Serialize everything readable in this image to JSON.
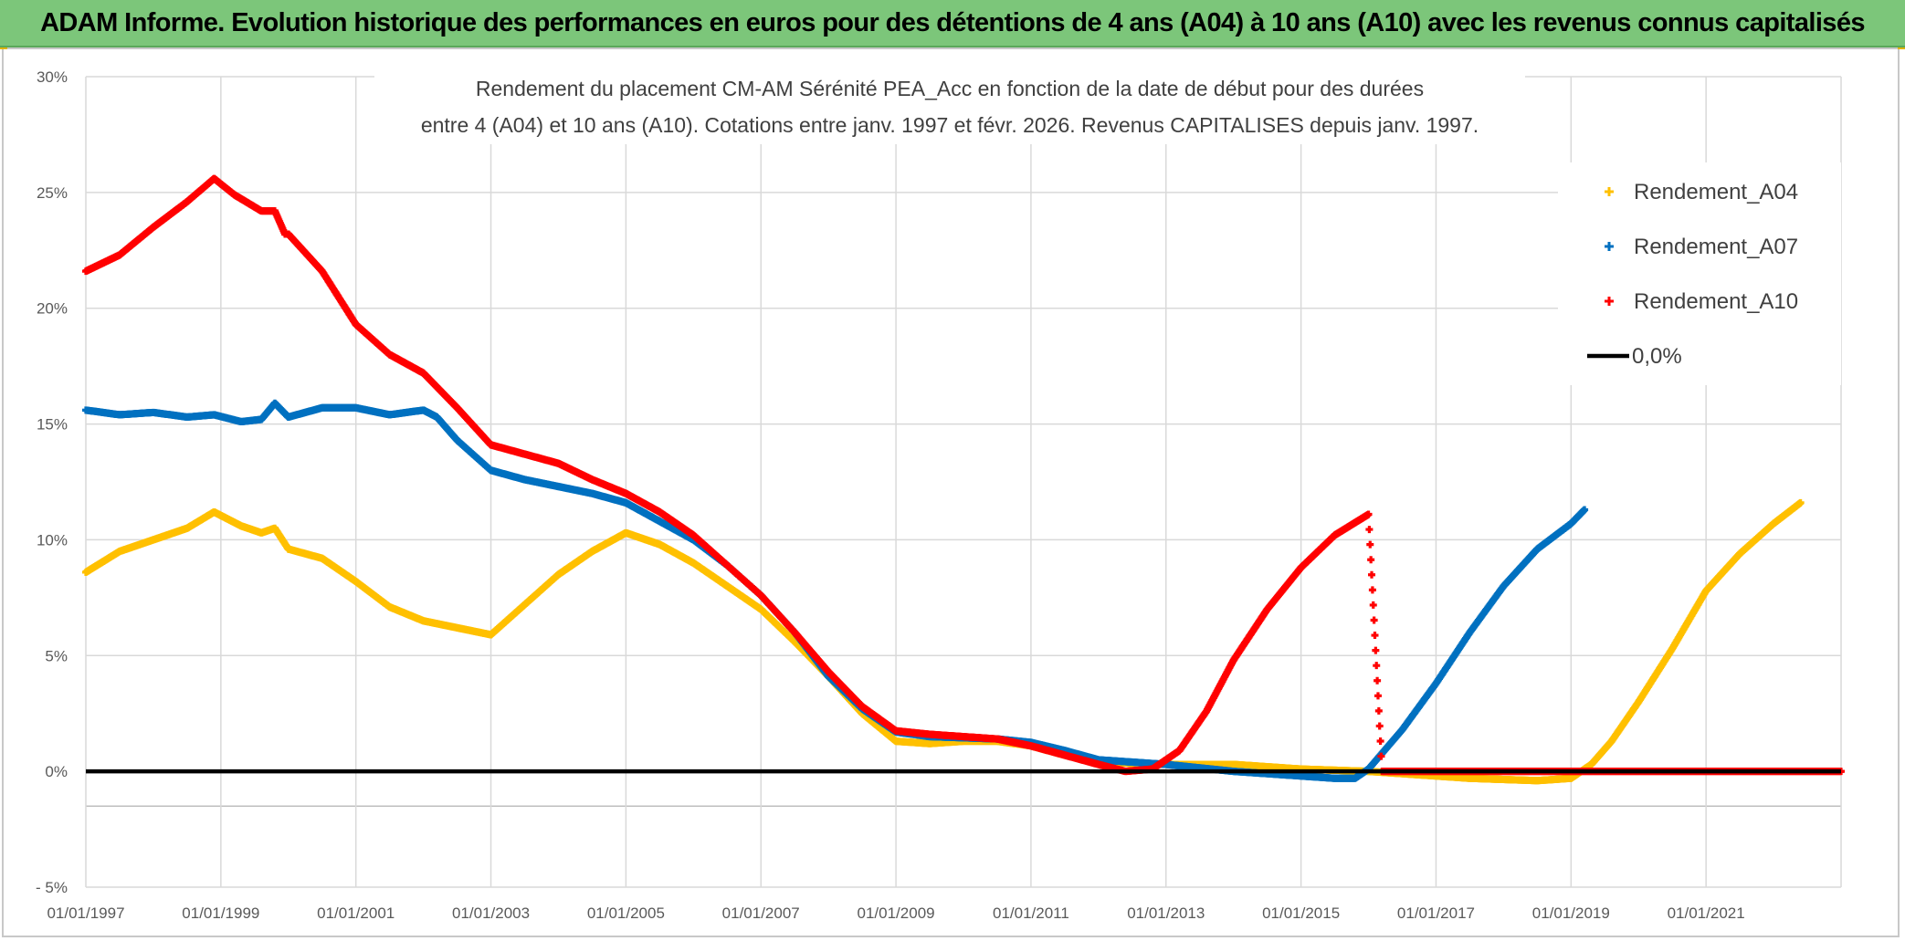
{
  "banner": {
    "title": "ADAM Informe. Evolution historique des performances en euros pour des détentions de 4 ans (A04) à 10 ans (A10) avec les revenus connus capitalisés"
  },
  "chart_data": {
    "type": "scatter",
    "title_line1": "Rendement du placement CM-AM Sérénité PEA_Acc en fonction de la date de début pour des durées",
    "title_line2": "entre 4 (A04) et 10 ans (A10). Cotations entre janv. 1997 et févr. 2026. Revenus CAPITALISES depuis janv. 1997.",
    "xlim": [
      1997.0,
      2023.0
    ],
    "ylim": [
      -5,
      30
    ],
    "x_ticks": [
      {
        "value": 1997,
        "label": "01/01/1997"
      },
      {
        "value": 1999,
        "label": "01/01/1999"
      },
      {
        "value": 2001,
        "label": "01/01/2001"
      },
      {
        "value": 2003,
        "label": "01/01/2003"
      },
      {
        "value": 2005,
        "label": "01/01/2005"
      },
      {
        "value": 2007,
        "label": "01/01/2007"
      },
      {
        "value": 2009,
        "label": "01/01/2009"
      },
      {
        "value": 2011,
        "label": "01/01/2011"
      },
      {
        "value": 2013,
        "label": "01/01/2013"
      },
      {
        "value": 2015,
        "label": "01/01/2015"
      },
      {
        "value": 2017,
        "label": "01/01/2017"
      },
      {
        "value": 2019,
        "label": "01/01/2019"
      },
      {
        "value": 2021,
        "label": "01/01/2021"
      }
    ],
    "y_ticks": [
      {
        "value": -5,
        "label": "- 5%"
      },
      {
        "value": 0,
        "label": "0%"
      },
      {
        "value": 5,
        "label": "5%"
      },
      {
        "value": 10,
        "label": "10%"
      },
      {
        "value": 15,
        "label": "15%"
      },
      {
        "value": 20,
        "label": "20%"
      },
      {
        "value": 25,
        "label": "25%"
      },
      {
        "value": 30,
        "label": "30%"
      }
    ],
    "extra_gridline_y": -1.5,
    "legend_position": "top-right",
    "series": [
      {
        "name": "Rendement_A04",
        "color": "#FFC000",
        "x": [
          1997.0,
          1997.5,
          1998.0,
          1998.5,
          1998.9,
          1999.3,
          1999.6,
          1999.8,
          2000.0,
          2000.5,
          2001.0,
          2001.5,
          2002.0,
          2002.5,
          2003.0,
          2003.5,
          2004.0,
          2004.5,
          2005.0,
          2005.5,
          2006.0,
          2006.5,
          2007.0,
          2007.5,
          2008.0,
          2008.5,
          2009.0,
          2009.5,
          2010.0,
          2010.5,
          2011.0,
          2011.5,
          2012.0,
          2012.5,
          2013.0,
          2013.5,
          2014.0,
          2014.5,
          2015.0,
          2015.5,
          2016.0,
          2016.5,
          2017.0,
          2017.5,
          2018.0,
          2018.5,
          2019.0,
          2019.3,
          2019.6,
          2020.0,
          2020.5,
          2021.0,
          2021.5,
          2022.0,
          2022.4
        ],
        "y": [
          8.6,
          9.5,
          10.0,
          10.5,
          11.2,
          10.6,
          10.3,
          10.5,
          9.6,
          9.2,
          8.2,
          7.1,
          6.5,
          6.2,
          5.9,
          7.2,
          8.5,
          9.5,
          10.3,
          9.8,
          9.0,
          8.0,
          7.0,
          5.6,
          4.1,
          2.5,
          1.3,
          1.2,
          1.3,
          1.3,
          1.1,
          0.7,
          0.4,
          0.35,
          0.3,
          0.3,
          0.3,
          0.2,
          0.1,
          0.05,
          0.0,
          -0.1,
          -0.2,
          -0.3,
          -0.35,
          -0.4,
          -0.3,
          0.3,
          1.3,
          3.0,
          5.3,
          7.8,
          9.4,
          10.7,
          11.6
        ]
      },
      {
        "name": "Rendement_A07",
        "color": "#0070C0",
        "x": [
          1997.0,
          1997.5,
          1998.0,
          1998.5,
          1998.9,
          1999.3,
          1999.6,
          1999.8,
          1999.9,
          2000.0,
          2000.5,
          2001.0,
          2001.5,
          2002.0,
          2002.2,
          2002.5,
          2003.0,
          2003.5,
          2004.0,
          2004.5,
          2005.0,
          2005.5,
          2006.0,
          2006.5,
          2007.0,
          2007.5,
          2008.0,
          2008.5,
          2009.0,
          2009.5,
          2010.0,
          2010.5,
          2011.0,
          2011.5,
          2012.0,
          2012.5,
          2013.0,
          2013.5,
          2014.0,
          2014.5,
          2015.0,
          2015.5,
          2015.8,
          2016.0,
          2016.5,
          2017.0,
          2017.5,
          2018.0,
          2018.5,
          2019.0,
          2019.2
        ],
        "y": [
          15.6,
          15.4,
          15.5,
          15.3,
          15.4,
          15.1,
          15.2,
          15.9,
          15.6,
          15.3,
          15.7,
          15.7,
          15.4,
          15.6,
          15.3,
          14.3,
          13.0,
          12.6,
          12.3,
          12.0,
          11.6,
          10.8,
          10.0,
          8.9,
          7.6,
          6.0,
          4.1,
          2.7,
          1.7,
          1.5,
          1.45,
          1.4,
          1.25,
          0.9,
          0.5,
          0.4,
          0.3,
          0.15,
          0.0,
          -0.1,
          -0.2,
          -0.3,
          -0.3,
          0.1,
          1.8,
          3.8,
          6.0,
          8.0,
          9.6,
          10.7,
          11.3
        ]
      },
      {
        "name": "Rendement_A10",
        "color": "#FF0000",
        "x": [
          1997.0,
          1997.5,
          1998.0,
          1998.5,
          1998.9,
          1999.2,
          1999.6,
          1999.8,
          1999.95,
          2000.0,
          2000.5,
          2001.0,
          2001.5,
          2002.0,
          2002.5,
          2003.0,
          2003.5,
          2004.0,
          2004.5,
          2005.0,
          2005.5,
          2006.0,
          2006.5,
          2007.0,
          2007.5,
          2008.0,
          2008.5,
          2009.0,
          2009.5,
          2010.0,
          2010.5,
          2011.0,
          2011.5,
          2012.0,
          2012.4,
          2012.8,
          2013.2,
          2013.6,
          2014.0,
          2014.5,
          2015.0,
          2015.5,
          2016.0,
          2016.2,
          2016.6,
          2017.0,
          2018.0,
          2019.0,
          2020.0,
          2021.0,
          2022.0,
          2023.0
        ],
        "y": [
          21.6,
          22.3,
          23.5,
          24.6,
          25.6,
          24.9,
          24.2,
          24.2,
          23.2,
          23.2,
          21.6,
          19.3,
          18.0,
          17.2,
          15.7,
          14.1,
          13.7,
          13.3,
          12.6,
          12.0,
          11.2,
          10.2,
          8.9,
          7.6,
          6.0,
          4.3,
          2.8,
          1.75,
          1.6,
          1.5,
          1.4,
          1.1,
          0.7,
          0.3,
          0.0,
          0.1,
          0.9,
          2.6,
          4.8,
          7.0,
          8.8,
          10.2,
          11.1,
          0.0,
          0.0,
          0.0,
          0.0,
          0.0,
          0.0,
          0.0,
          0.0,
          0.0
        ]
      },
      {
        "name": "0,0%",
        "color": "#000000",
        "x": [
          1997.0,
          2023.0
        ],
        "y": [
          0,
          0
        ]
      }
    ]
  }
}
